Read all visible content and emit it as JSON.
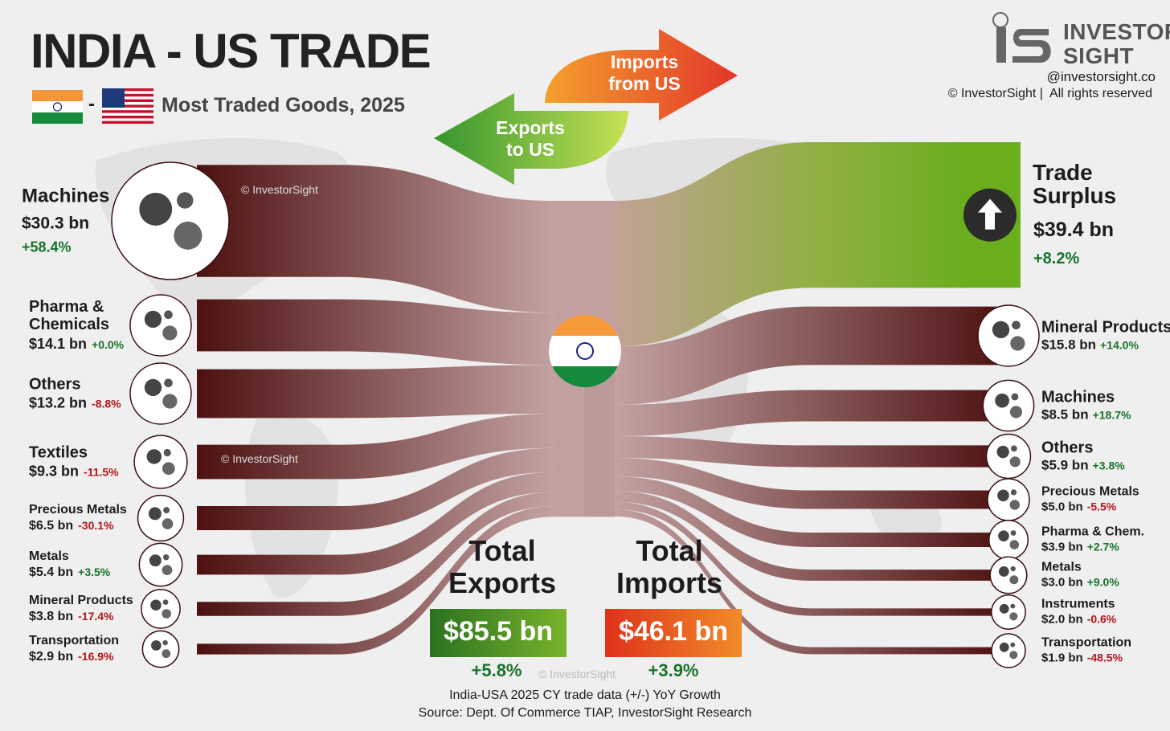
{
  "chart_data": {
    "type": "sankey",
    "title": "INDIA - US TRADE",
    "flag_separator": "-",
    "subtitle": "Most Traded Goods, 2025",
    "imports_arrow": "Imports from US",
    "exports_arrow": "Exports to US",
    "exports": {
      "name": "Total Exports",
      "total": 85.5,
      "total_label": "$85.5 bn",
      "total_growth": 5.8,
      "total_growth_label": "+5.8%",
      "color": "#3f8a22",
      "categories": [
        "Machines",
        "Pharma & Chemicals",
        "Others",
        "Textiles",
        "Precious Metals",
        "Metals",
        "Mineral Products",
        "Transportation"
      ],
      "values": [
        30.3,
        14.1,
        13.2,
        9.3,
        6.5,
        5.4,
        3.8,
        2.9
      ],
      "value_labels": [
        "$30.3 bn",
        "$14.1 bn",
        "$13.2 bn",
        "$9.3 bn",
        "$6.5 bn",
        "$5.4 bn",
        "$3.8 bn",
        "$2.9 bn"
      ],
      "growth": [
        58.4,
        0,
        -8.8,
        -11.5,
        -30.1,
        3.5,
        -17.4,
        -16.9
      ],
      "growth_labels": [
        "+58.4%",
        "+0.0%",
        "-8.8%",
        "-11.5%",
        "-30.1%",
        "+3.5%",
        "-17.4%",
        "-16.9%"
      ]
    },
    "imports": {
      "name": "Total Imports",
      "total": 46.1,
      "total_label": "$46.1 bn",
      "total_growth": 3.9,
      "total_growth_label": "+3.9%",
      "color": "#e4481e",
      "categories": [
        "Mineral Products",
        "Machines",
        "Others",
        "Precious Metals",
        "Pharma & Chem.",
        "Metals",
        "Instruments",
        "Transportation"
      ],
      "values": [
        15.8,
        8.5,
        5.9,
        5.0,
        3.9,
        3.0,
        2.0,
        1.9
      ],
      "value_labels": [
        "$15.8 bn",
        "$8.5 bn",
        "$5.9 bn",
        "$5.0 bn",
        "$3.9 bn",
        "$3.0 bn",
        "$2.0 bn",
        "$1.9 bn"
      ],
      "growth": [
        14.0,
        18.7,
        3.8,
        -5.5,
        2.7,
        9.0,
        -0.6,
        -48.5
      ],
      "growth_labels": [
        "+14.0%",
        "+18.7%",
        "+3.8%",
        "-5.5%",
        "+2.7%",
        "+9.0%",
        "-0.6%",
        "-48.5%"
      ]
    },
    "surplus": {
      "name": "Trade Surplus",
      "value": 39.4,
      "value_label": "$39.4 bn",
      "growth": 8.2,
      "growth_label": "+8.2%",
      "color": "#6aae1e"
    },
    "footer": [
      "India-USA 2025 CY trade data (+/-) YoY Growth",
      "Source: Dept. Of Commerce TIAP, InvestorSight Research"
    ]
  },
  "brand": {
    "name_top": "INVESTOR",
    "name_bottom": "SIGHT",
    "handle": "@investorsight.co",
    "rights": "© InvestorSight |  All rights reserved",
    "watermark": "© InvestorSight"
  }
}
